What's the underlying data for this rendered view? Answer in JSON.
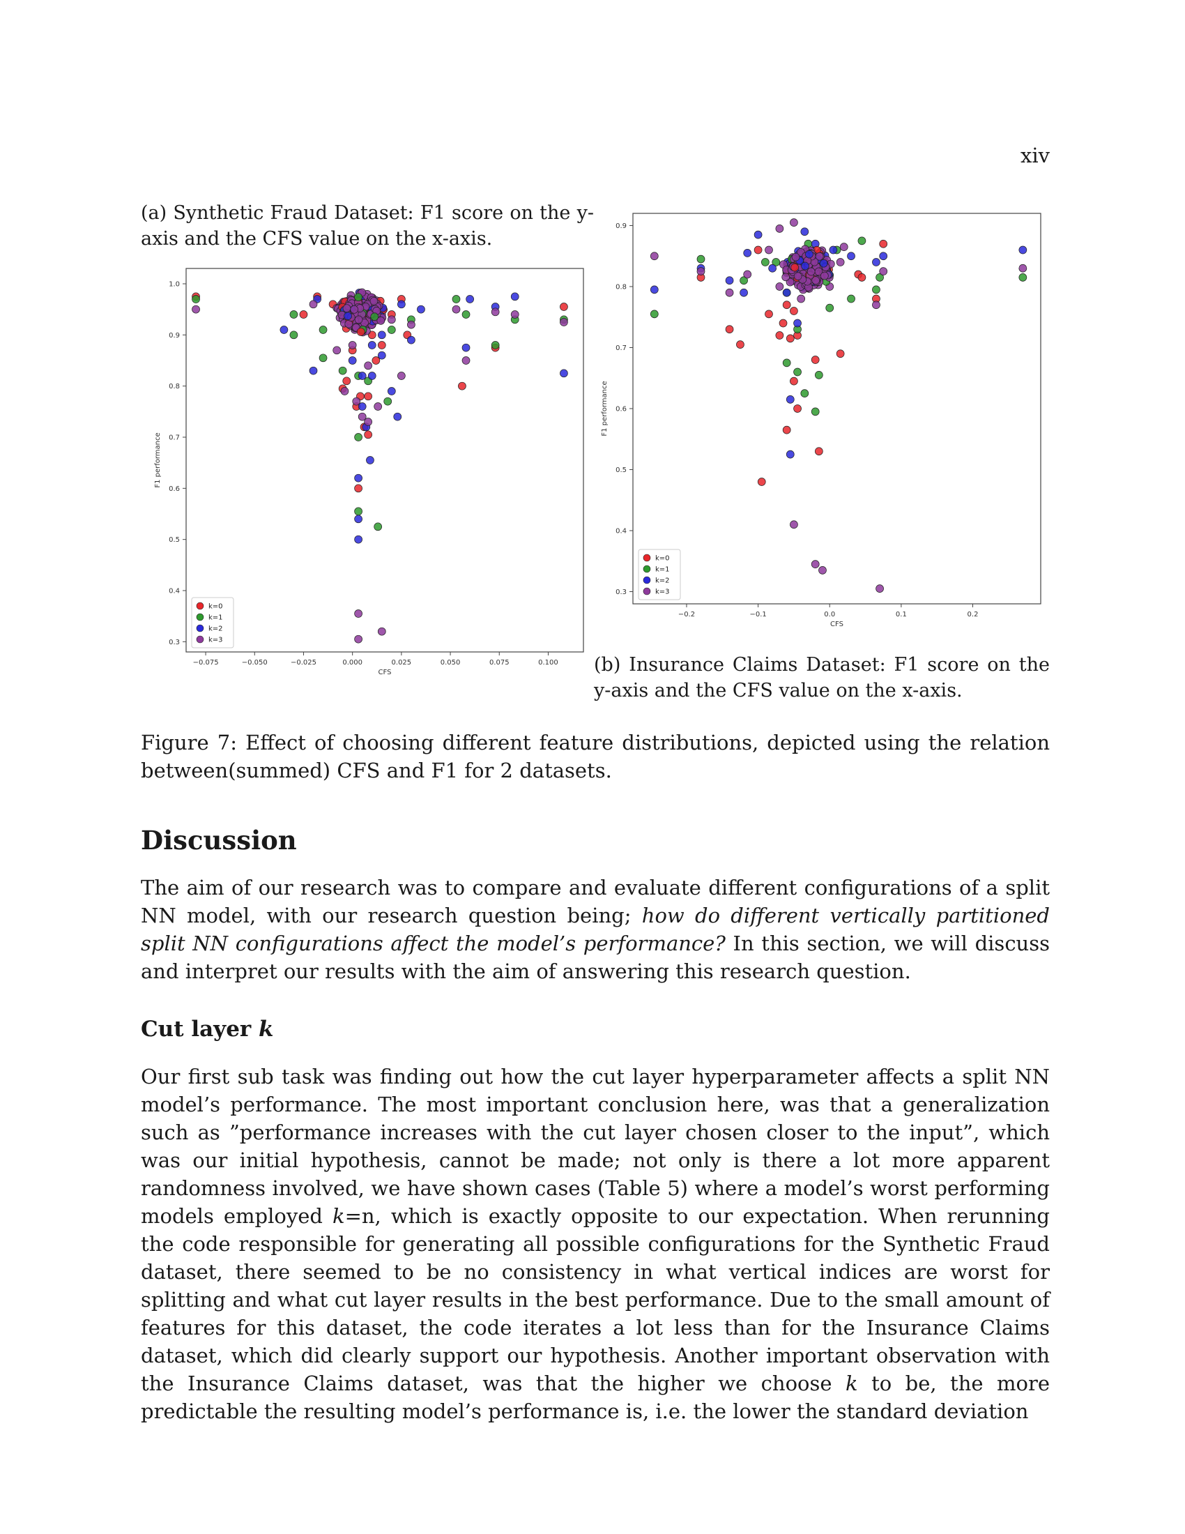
{
  "page": {
    "number": "xiv"
  },
  "figure": {
    "subcaption_a": "(a) Synthetic Fraud Dataset: F1 score on the y-axis and the CFS value on the x-axis.",
    "subcaption_b": "(b) Insurance Claims Dataset: F1 score on the y-axis and the CFS value on the x-axis.",
    "caption": "Figure 7: Effect of choosing different feature distributions, depicted using the relation between(summed) CFS and F1 for 2 datasets."
  },
  "discussion": {
    "title": "Discussion",
    "p1_before": "The aim of our research was to compare and evaluate different configurations of a split NN model, with our research question being; ",
    "p1_italic": "how do different vertically partitioned split NN configurations affect the model’s performance?",
    "p1_after": " In this section, we will discuss and interpret our results with the aim of answering this research question.",
    "subsection_title": "Cut layer ",
    "subsection_k": "k",
    "p2_a": "Our first sub task was finding out how the cut layer hyperparameter affects a split NN model’s performance. The most important conclusion here, was that a generalization such as ”performance increases with the cut layer chosen closer to the input”, which was our initial hypothesis, cannot be made; not only is there a lot more apparent randomness involved, we have shown cases (Table 5) where a model’s worst performing models employed ",
    "p2_k1": "k",
    "p2_b": "=n, which is exactly opposite to our expectation. When rerunning the code responsible for generating all possible configurations for the Synthetic Fraud dataset, there seemed to be no consistency in what vertical indices are worst for splitting and what cut layer results in the best performance. Due to the small amount of features for this dataset, the code iterates a lot less than for the Insurance Claims dataset, which did clearly support our hypothesis. Another important observation with the Insurance Claims dataset, was that the higher we choose ",
    "p2_k2": "k",
    "p2_c": " to be, the more predictable the resulting model’s performance is, i.e. the lower the standard deviation"
  },
  "chart_data": [
    {
      "type": "scatter",
      "title": "",
      "xlabel": "CFS",
      "ylabel": "F1 performance",
      "xlim": [
        -0.085,
        0.118
      ],
      "ylim": [
        0.28,
        1.03
      ],
      "xticks": [
        -0.075,
        -0.05,
        -0.025,
        0.0,
        0.025,
        0.05,
        0.075,
        0.1
      ],
      "xtick_labels": [
        "−0.075",
        "−0.050",
        "−0.025",
        "0.000",
        "0.025",
        "0.050",
        "0.075",
        "0.100"
      ],
      "yticks": [
        0.3,
        0.4,
        0.5,
        0.6,
        0.7,
        0.8,
        0.9,
        1.0
      ],
      "ytick_labels": [
        "0.3",
        "0.4",
        "0.5",
        "0.6",
        "0.7",
        "0.8",
        "0.9",
        "1.0"
      ],
      "grid": false,
      "legend_position": "bottom-left",
      "series": [
        {
          "name": "k=0",
          "color": "#e8262b",
          "points": [
            [
              -0.08,
              0.975
            ],
            [
              -0.025,
              0.94
            ],
            [
              -0.01,
              0.96
            ],
            [
              0.0,
              0.93
            ],
            [
              0.005,
              0.95
            ],
            [
              0.01,
              0.9
            ],
            [
              0.015,
              0.88
            ],
            [
              0.02,
              0.94
            ],
            [
              -0.003,
              0.81
            ],
            [
              0.004,
              0.78
            ],
            [
              0.008,
              0.78
            ],
            [
              0.006,
              0.72
            ],
            [
              0.008,
              0.705
            ],
            [
              0.003,
              0.6
            ],
            [
              0.025,
              0.97
            ],
            [
              0.028,
              0.9
            ],
            [
              0.056,
              0.8
            ],
            [
              0.073,
              0.875
            ],
            [
              0.108,
              0.955
            ],
            [
              -0.018,
              0.975
            ],
            [
              0.0,
              0.87
            ],
            [
              0.012,
              0.85
            ],
            [
              -0.005,
              0.795
            ],
            [
              0.002,
              0.76
            ]
          ]
        },
        {
          "name": "k=1",
          "color": "#2e9a2e",
          "points": [
            [
              -0.08,
              0.97
            ],
            [
              -0.015,
              0.91
            ],
            [
              -0.005,
              0.96
            ],
            [
              0.0,
              0.92
            ],
            [
              0.01,
              0.95
            ],
            [
              0.02,
              0.91
            ],
            [
              0.03,
              0.93
            ],
            [
              -0.015,
              0.855
            ],
            [
              0.003,
              0.82
            ],
            [
              0.003,
              0.7
            ],
            [
              0.003,
              0.555
            ],
            [
              0.013,
              0.525
            ],
            [
              0.018,
              0.77
            ],
            [
              0.053,
              0.97
            ],
            [
              0.058,
              0.94
            ],
            [
              0.073,
              0.88
            ],
            [
              0.083,
              0.93
            ],
            [
              0.108,
              0.93
            ],
            [
              -0.03,
              0.94
            ],
            [
              -0.03,
              0.9
            ],
            [
              -0.005,
              0.83
            ],
            [
              0.008,
              0.81
            ]
          ]
        },
        {
          "name": "k=2",
          "color": "#2a2adb",
          "points": [
            [
              -0.018,
              0.97
            ],
            [
              -0.005,
              0.96
            ],
            [
              0.005,
              0.91
            ],
            [
              0.01,
              0.88
            ],
            [
              0.015,
              0.9
            ],
            [
              0.025,
              0.96
            ],
            [
              0.035,
              0.95
            ],
            [
              0.0,
              0.85
            ],
            [
              0.005,
              0.82
            ],
            [
              0.01,
              0.82
            ],
            [
              0.015,
              0.86
            ],
            [
              0.02,
              0.79
            ],
            [
              0.023,
              0.74
            ],
            [
              0.007,
              0.72
            ],
            [
              0.009,
              0.655
            ],
            [
              0.003,
              0.62
            ],
            [
              0.003,
              0.54
            ],
            [
              0.003,
              0.5
            ],
            [
              0.06,
              0.97
            ],
            [
              0.058,
              0.875
            ],
            [
              0.073,
              0.955
            ],
            [
              0.083,
              0.975
            ],
            [
              0.108,
              0.825
            ],
            [
              -0.02,
              0.83
            ],
            [
              -0.035,
              0.91
            ],
            [
              0.03,
              0.89
            ],
            [
              0.005,
              0.76
            ]
          ]
        },
        {
          "name": "k=3",
          "color": "#8e3a9c",
          "points": [
            [
              -0.08,
              0.95
            ],
            [
              -0.02,
              0.96
            ],
            [
              -0.005,
              0.95
            ],
            [
              0.0,
              0.94
            ],
            [
              0.005,
              0.96
            ],
            [
              0.01,
              0.92
            ],
            [
              0.015,
              0.94
            ],
            [
              0.02,
              0.93
            ],
            [
              0.03,
              0.92
            ],
            [
              0.0,
              0.88
            ],
            [
              0.008,
              0.84
            ],
            [
              -0.004,
              0.79
            ],
            [
              0.002,
              0.77
            ],
            [
              0.005,
              0.74
            ],
            [
              0.008,
              0.73
            ],
            [
              0.013,
              0.76
            ],
            [
              0.025,
              0.82
            ],
            [
              0.003,
              0.355
            ],
            [
              0.003,
              0.305
            ],
            [
              0.015,
              0.32
            ],
            [
              0.053,
              0.95
            ],
            [
              0.058,
              0.85
            ],
            [
              0.073,
              0.945
            ],
            [
              0.083,
              0.94
            ],
            [
              0.108,
              0.925
            ],
            [
              -0.008,
              0.87
            ]
          ]
        }
      ],
      "cluster_center": [
        0.004,
        0.945
      ]
    },
    {
      "type": "scatter",
      "title": "",
      "xlabel": "CFS",
      "ylabel": "F1 performance",
      "xlim": [
        -0.275,
        0.295
      ],
      "ylim": [
        0.28,
        0.92
      ],
      "xticks": [
        -0.2,
        -0.1,
        0.0,
        0.1,
        0.2
      ],
      "xtick_labels": [
        "−0.2",
        "−0.1",
        "0.0",
        "0.1",
        "0.2"
      ],
      "yticks": [
        0.3,
        0.4,
        0.5,
        0.6,
        0.7,
        0.8,
        0.9
      ],
      "ytick_labels": [
        "0.3",
        "0.4",
        "0.5",
        "0.6",
        "0.7",
        "0.8",
        "0.9"
      ],
      "grid": false,
      "legend_position": "bottom-left",
      "series": [
        {
          "name": "k=0",
          "color": "#e8262b",
          "points": [
            [
              -0.18,
              0.815
            ],
            [
              -0.14,
              0.73
            ],
            [
              -0.125,
              0.705
            ],
            [
              -0.085,
              0.755
            ],
            [
              -0.07,
              0.72
            ],
            [
              -0.065,
              0.74
            ],
            [
              -0.055,
              0.715
            ],
            [
              -0.045,
              0.72
            ],
            [
              -0.05,
              0.645
            ],
            [
              -0.045,
              0.6
            ],
            [
              -0.06,
              0.565
            ],
            [
              -0.095,
              0.48
            ],
            [
              -0.015,
              0.53
            ],
            [
              -0.02,
              0.68
            ],
            [
              0.015,
              0.69
            ],
            [
              0.04,
              0.82
            ],
            [
              0.065,
              0.78
            ],
            [
              0.075,
              0.87
            ],
            [
              0.045,
              0.815
            ],
            [
              -0.1,
              0.86
            ],
            [
              -0.06,
              0.77
            ],
            [
              -0.05,
              0.76
            ]
          ]
        },
        {
          "name": "k=1",
          "color": "#2e9a2e",
          "points": [
            [
              -0.245,
              0.755
            ],
            [
              -0.18,
              0.845
            ],
            [
              -0.12,
              0.81
            ],
            [
              -0.09,
              0.84
            ],
            [
              -0.06,
              0.79
            ],
            [
              -0.045,
              0.73
            ],
            [
              -0.06,
              0.675
            ],
            [
              -0.045,
              0.66
            ],
            [
              -0.035,
              0.625
            ],
            [
              -0.02,
              0.595
            ],
            [
              -0.015,
              0.655
            ],
            [
              0.0,
              0.765
            ],
            [
              0.03,
              0.78
            ],
            [
              0.065,
              0.795
            ],
            [
              0.07,
              0.815
            ],
            [
              0.045,
              0.875
            ],
            [
              0.27,
              0.815
            ],
            [
              -0.075,
              0.84
            ],
            [
              -0.03,
              0.87
            ],
            [
              0.01,
              0.86
            ]
          ]
        },
        {
          "name": "k=2",
          "color": "#2a2adb",
          "points": [
            [
              -0.245,
              0.795
            ],
            [
              -0.18,
              0.83
            ],
            [
              -0.14,
              0.81
            ],
            [
              -0.115,
              0.855
            ],
            [
              -0.1,
              0.885
            ],
            [
              -0.08,
              0.83
            ],
            [
              -0.06,
              0.79
            ],
            [
              -0.045,
              0.74
            ],
            [
              -0.055,
              0.615
            ],
            [
              -0.055,
              0.525
            ],
            [
              -0.035,
              0.89
            ],
            [
              0.03,
              0.85
            ],
            [
              0.065,
              0.84
            ],
            [
              0.075,
              0.85
            ],
            [
              0.27,
              0.86
            ],
            [
              -0.12,
              0.79
            ],
            [
              -0.02,
              0.87
            ],
            [
              0.005,
              0.86
            ]
          ]
        },
        {
          "name": "k=3",
          "color": "#8e3a9c",
          "points": [
            [
              -0.245,
              0.85
            ],
            [
              -0.18,
              0.825
            ],
            [
              -0.14,
              0.79
            ],
            [
              -0.115,
              0.82
            ],
            [
              -0.07,
              0.895
            ],
            [
              -0.05,
              0.905
            ],
            [
              -0.05,
              0.41
            ],
            [
              -0.02,
              0.345
            ],
            [
              -0.01,
              0.335
            ],
            [
              0.07,
              0.305
            ],
            [
              0.075,
              0.825
            ],
            [
              0.065,
              0.77
            ],
            [
              0.27,
              0.83
            ],
            [
              0.015,
              0.84
            ],
            [
              -0.085,
              0.86
            ],
            [
              -0.04,
              0.78
            ],
            [
              0.0,
              0.8
            ],
            [
              -0.07,
              0.8
            ],
            [
              0.02,
              0.865
            ]
          ]
        }
      ],
      "cluster_center": [
        -0.03,
        0.83
      ]
    }
  ]
}
